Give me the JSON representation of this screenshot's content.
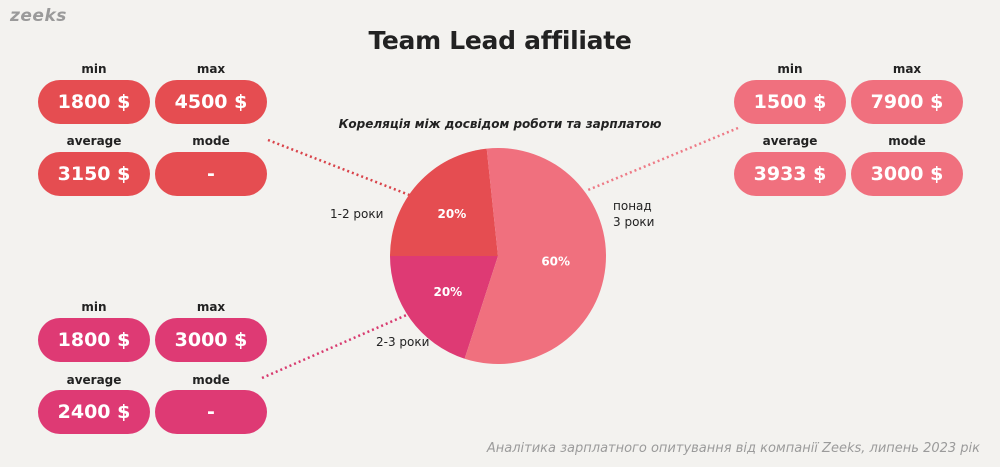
{
  "brand": "zeeks",
  "footer": "Аналітика зарплатного опитування від компанії Zeeks, липень 2023 рік",
  "chart_data": {
    "type": "pie",
    "title": "Team Lead affiliate",
    "subtitle": "Кореляція між досвідом роботи та зарплатою",
    "slices": [
      {
        "label": "1-2 роки",
        "value": 20,
        "value_label": "20%",
        "color": "#e54d51"
      },
      {
        "label": "2-3 роки",
        "value": 20,
        "value_label": "20%",
        "color": "#de3a74"
      },
      {
        "label": "понад 3 роки",
        "value": 60,
        "value_label": "60%",
        "color": "#f0707e"
      }
    ]
  },
  "stats": {
    "y1_2": {
      "min_label": "min",
      "min": "1800 $",
      "max_label": "max",
      "max": "4500 $",
      "avg_label": "average",
      "avg": "3150 $",
      "mode_label": "mode",
      "mode": "-"
    },
    "y2_3": {
      "min_label": "min",
      "min": "1800 $",
      "max_label": "max",
      "max": "3000 $",
      "avg_label": "average",
      "avg": "2400 $",
      "mode_label": "mode",
      "mode": "-"
    },
    "y3_plus": {
      "min_label": "min",
      "min": "1500 $",
      "max_label": "max",
      "max": "7900 $",
      "avg_label": "average",
      "avg": "3933 $",
      "mode_label": "mode",
      "mode": "3000 $"
    }
  },
  "group_labels": {
    "y1_2": "1-2 роки",
    "y2_3": "2-3 роки",
    "y3_plus_line1": "понад",
    "y3_plus_line2": "3 роки"
  }
}
